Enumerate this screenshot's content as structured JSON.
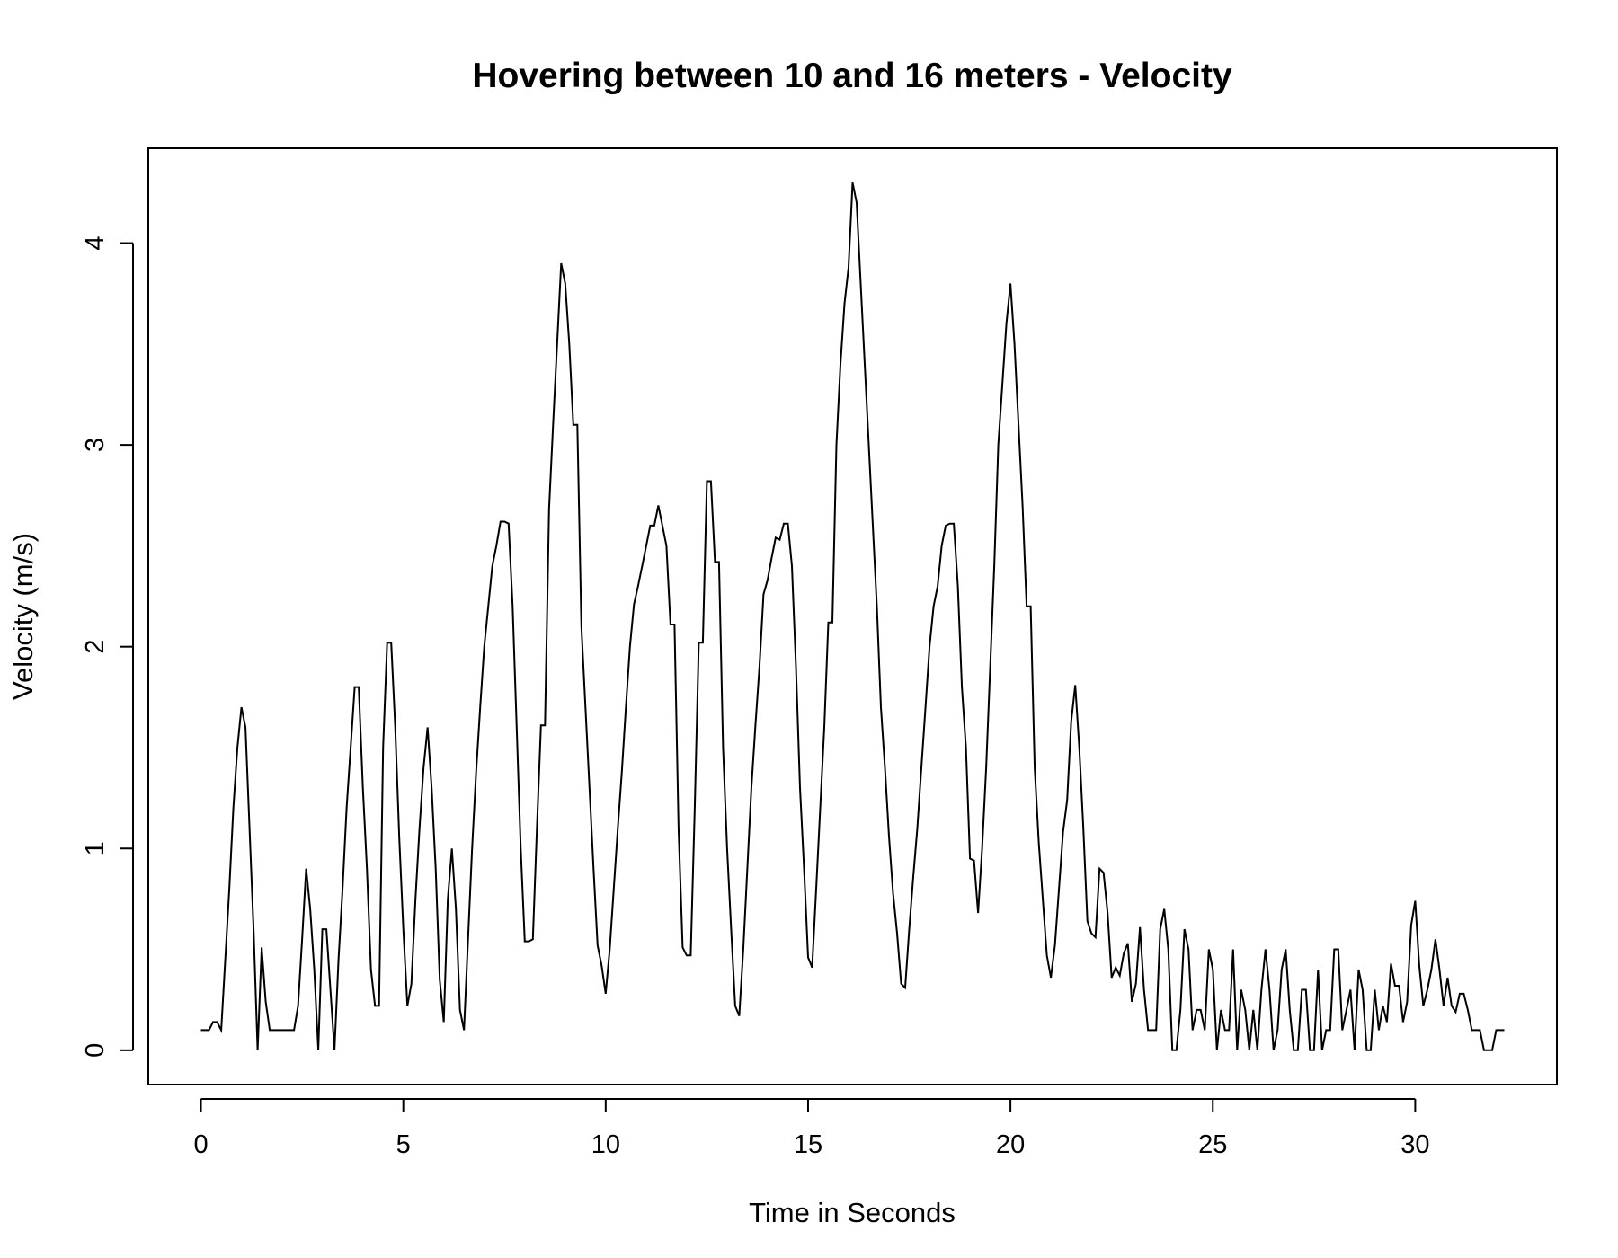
{
  "chart_data": {
    "type": "line",
    "title": "Hovering between 10 and 16 meters - Velocity",
    "xlabel": "Time in Seconds",
    "ylabel": "Velocity (m/s)",
    "xlim": [
      -1.3,
      33.5
    ],
    "ylim": [
      -0.17,
      4.47
    ],
    "x_ticks": [
      0,
      5,
      10,
      15,
      20,
      25,
      30
    ],
    "y_ticks": [
      0,
      1,
      2,
      3,
      4
    ],
    "grid": false,
    "legend": "none",
    "series": [
      {
        "color": "#000000",
        "x": [
          0,
          0.1,
          0.2,
          0.3,
          0.4,
          0.5,
          0.6,
          0.7,
          0.8,
          0.9,
          1.0,
          1.1,
          1.2,
          1.3,
          1.4,
          1.5,
          1.6,
          1.7,
          1.8,
          1.9,
          2.0,
          2.1,
          2.2,
          2.3,
          2.4,
          2.5,
          2.6,
          2.7,
          2.8,
          2.9,
          3.0,
          3.1,
          3.2,
          3.3,
          3.4,
          3.5,
          3.6,
          3.7,
          3.8,
          3.9,
          4.0,
          4.1,
          4.2,
          4.3,
          4.4,
          4.5,
          4.6,
          4.7,
          4.8,
          4.9,
          5.0,
          5.1,
          5.2,
          5.3,
          5.4,
          5.5,
          5.6,
          5.7,
          5.8,
          5.9,
          6.0,
          6.1,
          6.2,
          6.3,
          6.4,
          6.5,
          6.6,
          6.7,
          6.8,
          6.9,
          7.0,
          7.1,
          7.2,
          7.3,
          7.4,
          7.5,
          7.6,
          7.7,
          7.8,
          7.9,
          8.0,
          8.1,
          8.2,
          8.3,
          8.4,
          8.5,
          8.6,
          8.7,
          8.8,
          8.9,
          9.0,
          9.1,
          9.2,
          9.3,
          9.4,
          9.5,
          9.6,
          9.7,
          9.8,
          9.9,
          10.0,
          10.1,
          10.2,
          10.3,
          10.4,
          10.5,
          10.6,
          10.7,
          10.8,
          10.9,
          11.0,
          11.1,
          11.2,
          11.3,
          11.4,
          11.5,
          11.6,
          11.7,
          11.8,
          11.9,
          12.0,
          12.1,
          12.2,
          12.3,
          12.4,
          12.5,
          12.6,
          12.7,
          12.8,
          12.9,
          13.0,
          13.1,
          13.2,
          13.3,
          13.4,
          13.5,
          13.6,
          13.7,
          13.8,
          13.9,
          14.0,
          14.1,
          14.2,
          14.3,
          14.4,
          14.5,
          14.6,
          14.7,
          14.8,
          14.9,
          15.0,
          15.1,
          15.2,
          15.3,
          15.4,
          15.5,
          15.6,
          15.7,
          15.8,
          15.9,
          16.0,
          16.1,
          16.2,
          16.3,
          16.4,
          16.5,
          16.6,
          16.7,
          16.8,
          16.9,
          17.0,
          17.1,
          17.2,
          17.3,
          17.4,
          17.5,
          17.6,
          17.7,
          17.8,
          17.9,
          18.0,
          18.1,
          18.2,
          18.3,
          18.4,
          18.5,
          18.6,
          18.7,
          18.8,
          18.9,
          19.0,
          19.1,
          19.2,
          19.3,
          19.4,
          19.5,
          19.6,
          19.7,
          19.8,
          19.9,
          20.0,
          20.1,
          20.2,
          20.3,
          20.4,
          20.5,
          20.6,
          20.7,
          20.8,
          20.9,
          21.0,
          21.1,
          21.2,
          21.3,
          21.4,
          21.5,
          21.6,
          21.7,
          21.8,
          21.9,
          22.0,
          22.1,
          22.2,
          22.3,
          22.4,
          22.5,
          22.6,
          22.7,
          22.8,
          22.9,
          23.0,
          23.1,
          23.2,
          23.3,
          23.4,
          23.5,
          23.6,
          23.7,
          23.8,
          23.9,
          24.0,
          24.1,
          24.2,
          24.3,
          24.4,
          24.5,
          24.6,
          24.7,
          24.8,
          24.9,
          25.0,
          25.1,
          25.2,
          25.3,
          25.4,
          25.5,
          25.6,
          25.7,
          25.8,
          25.9,
          26.0,
          26.1,
          26.2,
          26.3,
          26.4,
          26.5,
          26.6,
          26.7,
          26.8,
          26.9,
          27.0,
          27.1,
          27.2,
          27.3,
          27.4,
          27.5,
          27.6,
          27.7,
          27.8,
          27.9,
          28.0,
          28.1,
          28.2,
          28.3,
          28.4,
          28.5,
          28.6,
          28.7,
          28.8,
          28.9,
          29.0,
          29.1,
          29.2,
          29.3,
          29.4,
          29.5,
          29.6,
          29.7,
          29.8,
          29.9,
          30.0,
          30.1,
          30.2,
          30.3,
          30.4,
          30.5,
          30.6,
          30.7,
          30.8,
          30.9,
          31.0,
          31.1,
          31.2,
          31.3,
          31.4,
          31.5,
          31.6,
          31.7,
          31.8,
          31.9,
          32.0,
          32.1,
          32.2
        ],
        "y": [
          0.1,
          0.1,
          0.1,
          0.14,
          0.14,
          0.1,
          0.45,
          0.8,
          1.2,
          1.5,
          1.7,
          1.6,
          1.1,
          0.6,
          0.0,
          0.51,
          0.24,
          0.1,
          0.1,
          0.1,
          0.1,
          0.1,
          0.1,
          0.1,
          0.22,
          0.55,
          0.9,
          0.7,
          0.4,
          0.0,
          0.6,
          0.6,
          0.3,
          0.0,
          0.45,
          0.8,
          1.2,
          1.5,
          1.8,
          1.8,
          1.3,
          0.9,
          0.4,
          0.22,
          0.22,
          1.5,
          2.02,
          2.02,
          1.6,
          1.05,
          0.6,
          0.22,
          0.33,
          0.75,
          1.1,
          1.4,
          1.6,
          1.3,
          0.9,
          0.35,
          0.14,
          0.75,
          1.0,
          0.7,
          0.2,
          0.1,
          0.55,
          1.0,
          1.38,
          1.7,
          2.0,
          2.2,
          2.4,
          2.5,
          2.62,
          2.62,
          2.61,
          2.2,
          1.6,
          1.0,
          0.54,
          0.54,
          0.55,
          1.1,
          1.61,
          1.61,
          2.68,
          3.1,
          3.5,
          3.9,
          3.8,
          3.5,
          3.1,
          3.1,
          2.1,
          1.7,
          1.3,
          0.9,
          0.52,
          0.42,
          0.28,
          0.5,
          0.8,
          1.1,
          1.38,
          1.7,
          2.0,
          2.21,
          2.3,
          2.4,
          2.5,
          2.6,
          2.6,
          2.7,
          2.6,
          2.5,
          2.11,
          2.11,
          1.1,
          0.51,
          0.47,
          0.47,
          1.2,
          2.02,
          2.02,
          2.82,
          2.82,
          2.42,
          2.42,
          1.5,
          1.0,
          0.6,
          0.22,
          0.17,
          0.5,
          0.9,
          1.3,
          1.61,
          1.9,
          2.26,
          2.33,
          2.44,
          2.54,
          2.53,
          2.61,
          2.61,
          2.4,
          1.9,
          1.3,
          0.9,
          0.46,
          0.41,
          0.8,
          1.2,
          1.6,
          2.12,
          2.12,
          3.0,
          3.4,
          3.7,
          3.88,
          4.3,
          4.2,
          3.8,
          3.4,
          3.0,
          2.6,
          2.2,
          1.7,
          1.4,
          1.06,
          0.78,
          0.58,
          0.33,
          0.31,
          0.6,
          0.86,
          1.1,
          1.4,
          1.7,
          2.0,
          2.2,
          2.3,
          2.5,
          2.6,
          2.61,
          2.61,
          2.3,
          1.8,
          1.5,
          0.95,
          0.94,
          0.68,
          1.0,
          1.4,
          1.9,
          2.4,
          3.0,
          3.3,
          3.6,
          3.8,
          3.5,
          3.1,
          2.7,
          2.2,
          2.2,
          1.4,
          1.03,
          0.75,
          0.47,
          0.36,
          0.52,
          0.8,
          1.08,
          1.24,
          1.63,
          1.81,
          1.5,
          1.1,
          0.64,
          0.58,
          0.56,
          0.9,
          0.88,
          0.68,
          0.36,
          0.41,
          0.37,
          0.48,
          0.53,
          0.24,
          0.33,
          0.61,
          0.3,
          0.1,
          0.1,
          0.1,
          0.6,
          0.7,
          0.5,
          0.0,
          0.0,
          0.2,
          0.6,
          0.5,
          0.1,
          0.2,
          0.2,
          0.1,
          0.5,
          0.4,
          0.0,
          0.2,
          0.1,
          0.1,
          0.5,
          0.0,
          0.3,
          0.2,
          0.0,
          0.2,
          0.0,
          0.3,
          0.5,
          0.3,
          0.0,
          0.1,
          0.4,
          0.5,
          0.2,
          0.0,
          0.0,
          0.3,
          0.3,
          0.0,
          0.0,
          0.4,
          0.0,
          0.1,
          0.1,
          0.5,
          0.5,
          0.1,
          0.2,
          0.3,
          0.0,
          0.4,
          0.3,
          0.0,
          0.0,
          0.3,
          0.1,
          0.22,
          0.14,
          0.43,
          0.32,
          0.32,
          0.14,
          0.24,
          0.62,
          0.74,
          0.42,
          0.22,
          0.3,
          0.4,
          0.55,
          0.4,
          0.22,
          0.36,
          0.22,
          0.19,
          0.28,
          0.28,
          0.2,
          0.1,
          0.1,
          0.1,
          0.0,
          0.0,
          0.0,
          0.1,
          0.1,
          0.1
        ]
      }
    ]
  }
}
